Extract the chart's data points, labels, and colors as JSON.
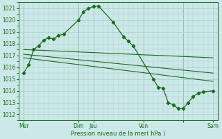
{
  "xlabel": "Pression niveau de la mer( hPa )",
  "background_color": "#cce8e8",
  "grid_color": "#aacccc",
  "line_color": "#1a6b1a",
  "ylim": [
    1011.5,
    1021.5
  ],
  "yticks": [
    1012,
    1013,
    1014,
    1015,
    1016,
    1017,
    1018,
    1019,
    1020,
    1021
  ],
  "xlim": [
    0,
    20
  ],
  "x_day_positions": [
    0.5,
    6.0,
    7.5,
    12.5,
    16.5,
    19.5
  ],
  "x_day_labels": [
    "Mer",
    "Dim",
    "Jeu",
    "Ven",
    "",
    "Sam"
  ],
  "x_vlines": [
    0.5,
    6.0,
    7.5,
    12.5,
    16.5
  ],
  "main_x": [
    0.5,
    1.0,
    1.5,
    2.0,
    2.5,
    3.0,
    3.5,
    4.0,
    4.5,
    6.0,
    6.5,
    7.0,
    7.5,
    8.0,
    9.5,
    10.5,
    11.0,
    11.5,
    13.5,
    14.0,
    14.5,
    15.0,
    15.5,
    16.0,
    16.5,
    17.0,
    17.5,
    18.0,
    18.5,
    19.5
  ],
  "main_y": [
    1015.5,
    1016.2,
    1017.5,
    1017.8,
    1018.3,
    1018.5,
    1018.4,
    1018.7,
    1018.8,
    1020.0,
    1020.7,
    1021.0,
    1021.15,
    1021.2,
    1019.8,
    1018.6,
    1018.2,
    1017.8,
    1015.0,
    1014.3,
    1014.2,
    1013.0,
    1012.8,
    1012.5,
    1012.5,
    1013.0,
    1013.5,
    1013.8,
    1013.9,
    1014.0
  ],
  "trend1_x": [
    0.5,
    19.5
  ],
  "trend1_y": [
    1017.5,
    1016.8
  ],
  "trend2_x": [
    0.5,
    19.5
  ],
  "trend2_y": [
    1017.1,
    1015.5
  ],
  "trend3_x": [
    0.5,
    19.5
  ],
  "trend3_y": [
    1016.8,
    1014.8
  ]
}
